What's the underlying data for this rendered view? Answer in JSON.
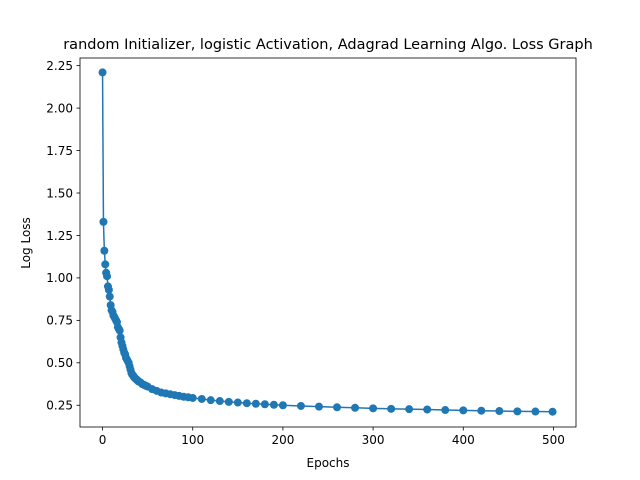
{
  "chart_data": {
    "type": "line",
    "title": "random Initializer, logistic Activation, Adagrad Learning Algo. Loss Graph",
    "xlabel": "Epochs",
    "ylabel": "Log Loss",
    "xlim": [
      -25,
      525
    ],
    "ylim": [
      0.122,
      2.295
    ],
    "xticks": [
      0,
      100,
      200,
      300,
      400,
      500
    ],
    "yticks": [
      0.25,
      0.5,
      0.75,
      1.0,
      1.25,
      1.5,
      1.75,
      2.0,
      2.25
    ],
    "xtick_labels": [
      "0",
      "100",
      "200",
      "300",
      "400",
      "500"
    ],
    "ytick_labels": [
      "0.25",
      "0.50",
      "0.75",
      "1.00",
      "1.25",
      "1.50",
      "1.75",
      "2.00",
      "2.25"
    ],
    "grid": false,
    "marker": "circle",
    "color": "#1f77b4",
    "series": [
      {
        "x": [
          0,
          1,
          2,
          3,
          4,
          5,
          6,
          7,
          8,
          9,
          10,
          11,
          12,
          13,
          14,
          15,
          16,
          17,
          18,
          19,
          20,
          21,
          22,
          23,
          24,
          25,
          26,
          27,
          28,
          29,
          30,
          31,
          32,
          33,
          34,
          35,
          36,
          37,
          38,
          39,
          40,
          42,
          44,
          46,
          48,
          50,
          55,
          60,
          65,
          70,
          75,
          80,
          85,
          90,
          95,
          100,
          110,
          120,
          130,
          140,
          150,
          160,
          170,
          180,
          190,
          200,
          220,
          240,
          260,
          280,
          300,
          320,
          340,
          360,
          380,
          400,
          420,
          440,
          460,
          480,
          499
        ],
        "y": [
          2.21,
          1.33,
          1.16,
          1.08,
          1.03,
          1.01,
          0.95,
          0.93,
          0.89,
          0.84,
          0.81,
          0.8,
          0.78,
          0.77,
          0.76,
          0.75,
          0.74,
          0.71,
          0.7,
          0.69,
          0.65,
          0.62,
          0.6,
          0.58,
          0.56,
          0.55,
          0.53,
          0.52,
          0.51,
          0.5,
          0.48,
          0.46,
          0.44,
          0.43,
          0.425,
          0.415,
          0.41,
          0.405,
          0.4,
          0.395,
          0.39,
          0.385,
          0.375,
          0.37,
          0.365,
          0.36,
          0.345,
          0.335,
          0.325,
          0.32,
          0.315,
          0.31,
          0.305,
          0.3,
          0.297,
          0.293,
          0.287,
          0.28,
          0.275,
          0.27,
          0.266,
          0.262,
          0.259,
          0.256,
          0.253,
          0.25,
          0.246,
          0.242,
          0.238,
          0.235,
          0.232,
          0.229,
          0.227,
          0.225,
          0.222,
          0.22,
          0.218,
          0.216,
          0.214,
          0.213,
          0.212
        ]
      }
    ]
  }
}
